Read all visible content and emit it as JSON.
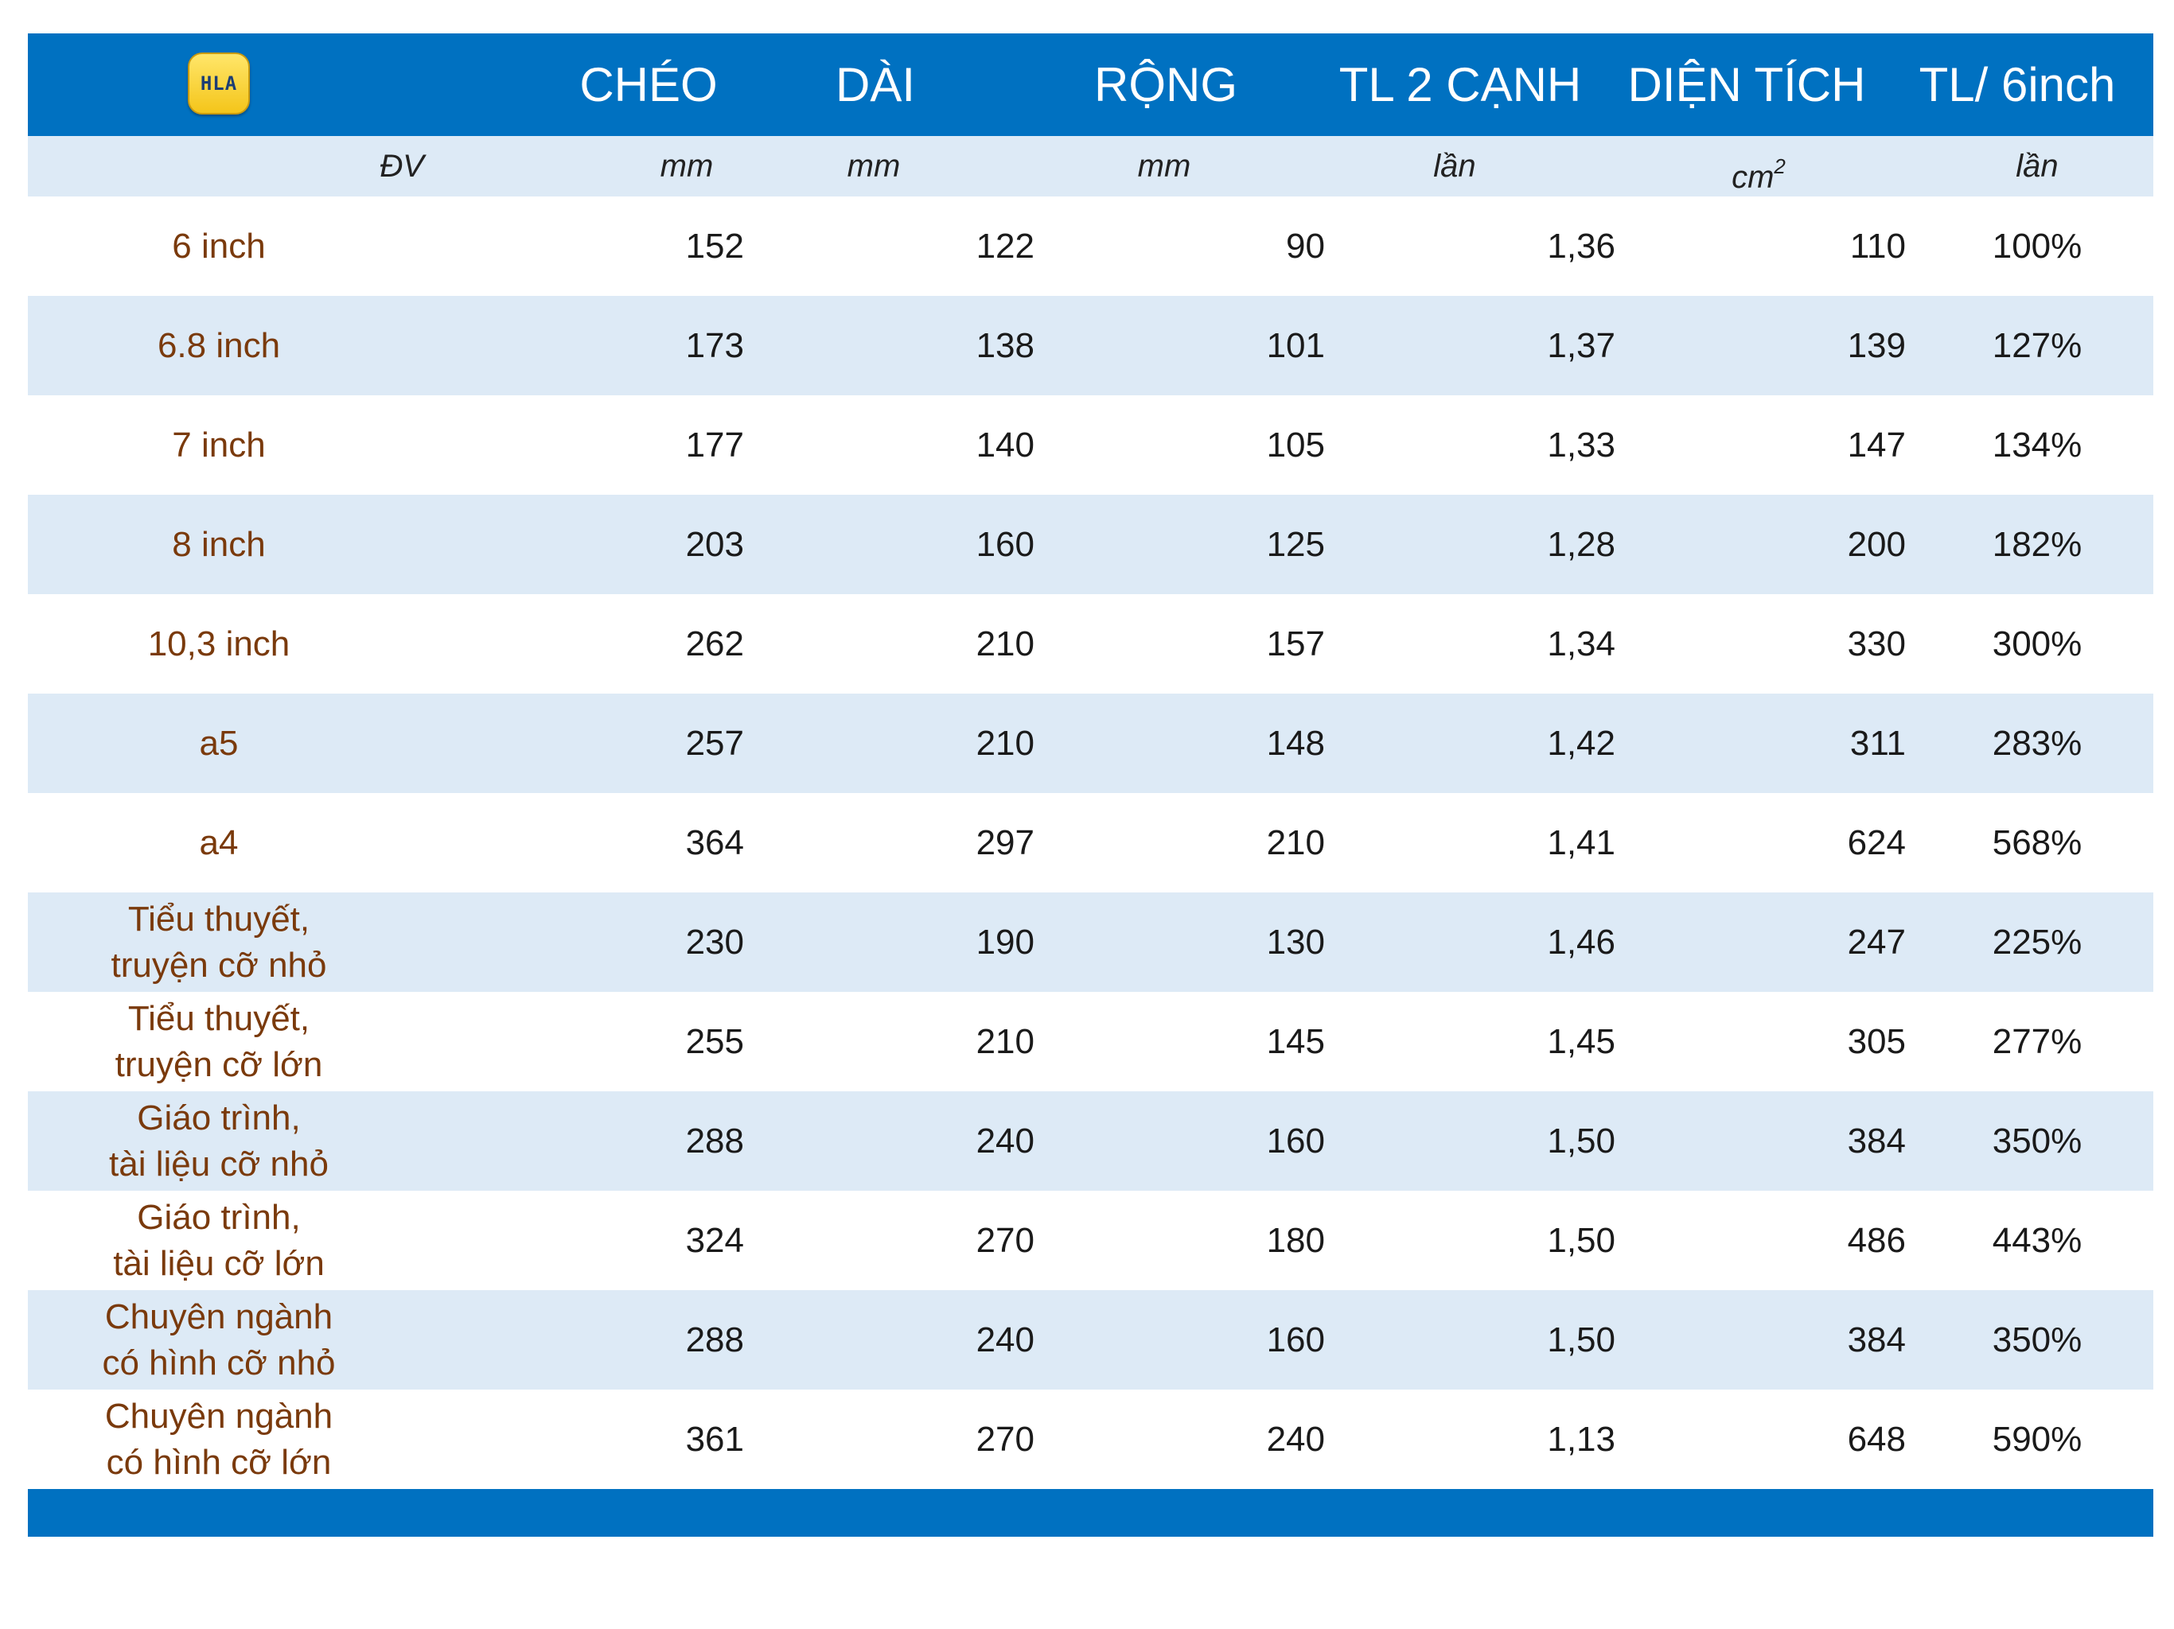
{
  "logo": {
    "text": "HLA"
  },
  "headers": [
    "CHÉO",
    "DÀI",
    "RỘNG",
    "TL 2 CẠNH",
    "DIỆN TÍCH",
    "TL/ 6inch"
  ],
  "units": {
    "label": "ĐV",
    "cheo": "mm",
    "dai": "mm",
    "rong": "mm",
    "tl2canh": "lần",
    "dientich": "cm",
    "dientich_sup": "2",
    "tl6inch": "lần"
  },
  "rows": [
    {
      "name": "6 inch",
      "cheo": "152",
      "dai": "122",
      "rong": "90",
      "tl": "1,36",
      "dt": "110",
      "pct": "100%"
    },
    {
      "name": "6.8 inch",
      "cheo": "173",
      "dai": "138",
      "rong": "101",
      "tl": "1,37",
      "dt": "139",
      "pct": "127%"
    },
    {
      "name": "7 inch",
      "cheo": "177",
      "dai": "140",
      "rong": "105",
      "tl": "1,33",
      "dt": "147",
      "pct": "134%"
    },
    {
      "name": "8 inch",
      "cheo": "203",
      "dai": "160",
      "rong": "125",
      "tl": "1,28",
      "dt": "200",
      "pct": "182%"
    },
    {
      "name": "10,3 inch",
      "cheo": "262",
      "dai": "210",
      "rong": "157",
      "tl": "1,34",
      "dt": "330",
      "pct": "300%"
    },
    {
      "name": "a5",
      "cheo": "257",
      "dai": "210",
      "rong": "148",
      "tl": "1,42",
      "dt": "311",
      "pct": "283%"
    },
    {
      "name": "a4",
      "cheo": "364",
      "dai": "297",
      "rong": "210",
      "tl": "1,41",
      "dt": "624",
      "pct": "568%"
    },
    {
      "name": "Tiểu thuyết,\ntruyện cỡ nhỏ",
      "cheo": "230",
      "dai": "190",
      "rong": "130",
      "tl": "1,46",
      "dt": "247",
      "pct": "225%"
    },
    {
      "name": "Tiểu thuyết,\ntruyện cỡ lớn",
      "cheo": "255",
      "dai": "210",
      "rong": "145",
      "tl": "1,45",
      "dt": "305",
      "pct": "277%"
    },
    {
      "name": "Giáo trình,\ntài liệu cỡ nhỏ",
      "cheo": "288",
      "dai": "240",
      "rong": "160",
      "tl": "1,50",
      "dt": "384",
      "pct": "350%"
    },
    {
      "name": "Giáo trình,\ntài liệu cỡ  lớn",
      "cheo": "324",
      "dai": "270",
      "rong": "180",
      "tl": "1,50",
      "dt": "486",
      "pct": "443%"
    },
    {
      "name": "Chuyên ngành\ncó hình cỡ nhỏ",
      "cheo": "288",
      "dai": "240",
      "rong": "160",
      "tl": "1,50",
      "dt": "384",
      "pct": "350%"
    },
    {
      "name": "Chuyên ngành\ncó hình cỡ lớn",
      "cheo": "361",
      "dai": "270",
      "rong": "240",
      "tl": "1,13",
      "dt": "648",
      "pct": "590%"
    }
  ]
}
